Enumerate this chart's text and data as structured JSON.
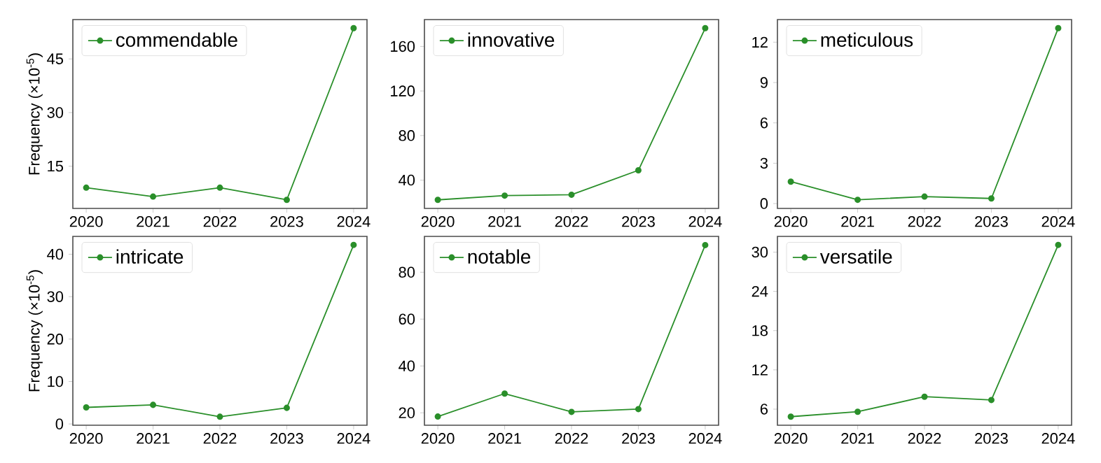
{
  "chart_data": [
    {
      "type": "line",
      "categories": [
        "2020",
        "2021",
        "2022",
        "2023",
        "2024"
      ],
      "ylabel": "Frequency (×10$^{-5}$)",
      "ylim": [
        3.2,
        56
      ],
      "yticks": [
        15,
        30,
        45
      ],
      "legend": "top left",
      "marker": "circle",
      "series": [
        {
          "name": "commendable",
          "color": "#2a8f2a",
          "values": [
            9.0,
            6.5,
            9.0,
            5.6,
            53.6
          ]
        }
      ]
    },
    {
      "type": "line",
      "categories": [
        "2020",
        "2021",
        "2022",
        "2023",
        "2024"
      ],
      "ylim": [
        14.6,
        184.1
      ],
      "yticks": [
        40,
        80,
        120,
        160
      ],
      "legend": "top left",
      "marker": "circle",
      "series": [
        {
          "name": "innovative",
          "color": "#2a8f2a",
          "values": [
            22.3,
            26.1,
            26.9,
            48.8,
            176.4
          ]
        }
      ]
    },
    {
      "type": "line",
      "categories": [
        "2020",
        "2021",
        "2022",
        "2023",
        "2024"
      ],
      "ylim": [
        -0.36,
        13.68
      ],
      "yticks": [
        0,
        3,
        6,
        9,
        12
      ],
      "legend": "top left",
      "marker": "circle",
      "series": [
        {
          "name": "meticulous",
          "color": "#2a8f2a",
          "values": [
            1.63,
            0.28,
            0.52,
            0.38,
            13.04
          ]
        }
      ]
    },
    {
      "type": "line",
      "categories": [
        "2020",
        "2021",
        "2022",
        "2023",
        "2024"
      ],
      "ylabel": "Frequency (×10$^{-5}$)",
      "ylim": [
        -0.3,
        44.2
      ],
      "yticks": [
        0,
        10,
        20,
        30,
        40
      ],
      "legend": "top left",
      "marker": "circle",
      "series": [
        {
          "name": "intricate",
          "color": "#2a8f2a",
          "values": [
            3.9,
            4.5,
            1.7,
            3.8,
            42.2
          ]
        }
      ]
    },
    {
      "type": "line",
      "categories": [
        "2020",
        "2021",
        "2022",
        "2023",
        "2024"
      ],
      "ylim": [
        14.7,
        95.3
      ],
      "yticks": [
        20,
        40,
        60,
        80
      ],
      "legend": "top left",
      "marker": "circle",
      "series": [
        {
          "name": "notable",
          "color": "#2a8f2a",
          "values": [
            18.4,
            28.2,
            20.4,
            21.6,
            91.6
          ]
        }
      ]
    },
    {
      "type": "line",
      "categories": [
        "2020",
        "2021",
        "2022",
        "2023",
        "2024"
      ],
      "ylim": [
        3.54,
        32.4
      ],
      "yticks": [
        6,
        12,
        18,
        24,
        30
      ],
      "legend": "top left",
      "marker": "circle",
      "series": [
        {
          "name": "versatile",
          "color": "#2a8f2a",
          "values": [
            4.85,
            5.6,
            7.9,
            7.4,
            31.1
          ]
        }
      ]
    }
  ]
}
